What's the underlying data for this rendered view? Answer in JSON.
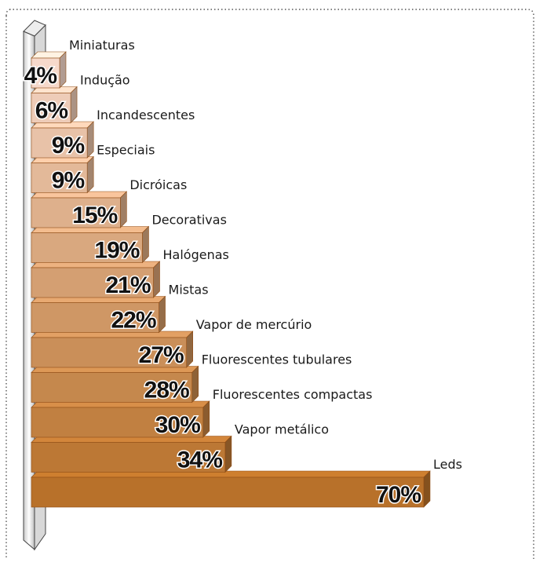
{
  "chart_data": {
    "type": "bar",
    "orientation": "horizontal",
    "categories": [
      "Miniaturas",
      "Indução",
      "Incandescentes",
      "Especiais",
      "Dicróicas",
      "Decorativas",
      "Halógenas",
      "Mistas",
      "Vapor de mercúrio",
      "Fluorescentes tubulares",
      "Fluorescentes compactas",
      "Vapor metálico",
      "Leds"
    ],
    "values": [
      4,
      6,
      9,
      9,
      15,
      19,
      21,
      22,
      27,
      28,
      30,
      34,
      70
    ],
    "value_labels": [
      "4%",
      "6%",
      "9%",
      "9%",
      "15%",
      "19%",
      "21%",
      "22%",
      "27%",
      "28%",
      "30%",
      "34%",
      "70%"
    ],
    "xlim": [
      0,
      70
    ],
    "unit": "%",
    "title": "",
    "xlabel": "",
    "ylabel": "",
    "grid": false,
    "legend": "none",
    "colors": {
      "lightest": "#f6d9cb",
      "darkest": "#b8712a",
      "edge": "#8f4c14",
      "frame_border": "#555555"
    }
  }
}
